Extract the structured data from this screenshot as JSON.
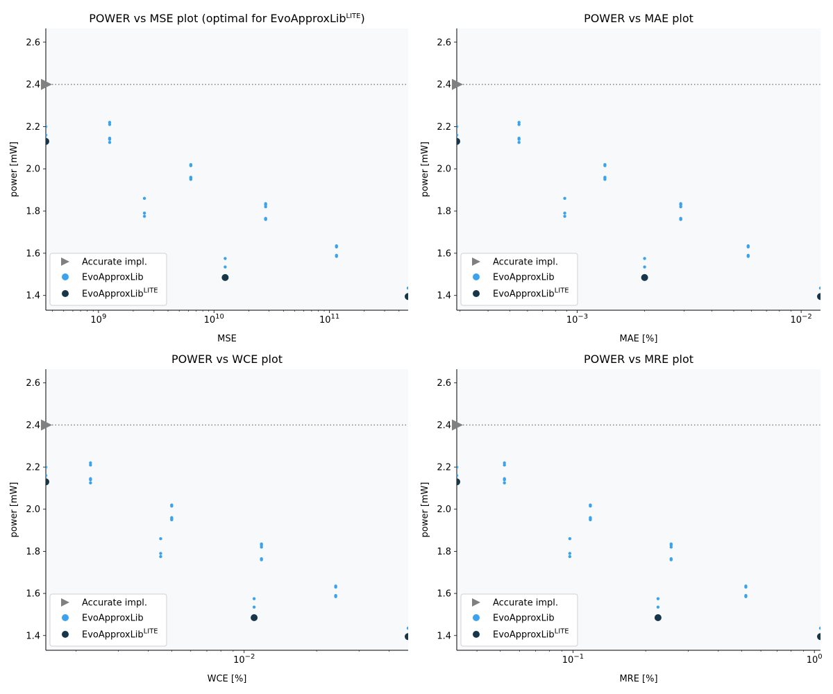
{
  "chart_data": [
    {
      "type": "scatter",
      "title": "POWER vs MSE plot (optimal for EvoApproxLib",
      "title_sup": "LITE",
      "title_tail": ")",
      "xlabel": "MSE",
      "ylabel": "power [mW]",
      "xscale": "log",
      "xlim": [
        350000000,
        480000000000
      ],
      "ylim": [
        1.33,
        2.665
      ],
      "xticks": [
        {
          "value": 1000000000,
          "base": "10",
          "exp": "9"
        },
        {
          "value": 10000000000,
          "base": "10",
          "exp": "10"
        },
        {
          "value": 100000000000,
          "base": "10",
          "exp": "11"
        }
      ],
      "yticks": [
        "1.4",
        "1.6",
        "1.8",
        "2.0",
        "2.2",
        "2.4",
        "2.6"
      ],
      "reference_y": 2.4,
      "series": [
        {
          "name": "Accurate impl.",
          "marker": "triangle",
          "color": "#808080",
          "points": [
            [
              350000000,
              2.4
            ]
          ]
        },
        {
          "name": "EvoApproxLib",
          "marker": "small-dot",
          "color": "#3ba3ec",
          "points": [
            [
              350000000,
              2.2
            ],
            [
              350000000,
              2.16
            ],
            [
              1250000000,
              2.22
            ],
            [
              1250000000,
              2.21
            ],
            [
              1250000000,
              2.145
            ],
            [
              1250000000,
              2.14
            ],
            [
              1250000000,
              2.125
            ],
            [
              2500000000,
              1.86
            ],
            [
              2500000000,
              1.79
            ],
            [
              2500000000,
              1.775
            ],
            [
              6300000000,
              2.02
            ],
            [
              6300000000,
              2.015
            ],
            [
              6300000000,
              1.96
            ],
            [
              6300000000,
              1.955
            ],
            [
              6300000000,
              1.95
            ],
            [
              12500000000,
              1.575
            ],
            [
              12500000000,
              1.535
            ],
            [
              28000000000,
              1.835
            ],
            [
              28000000000,
              1.83
            ],
            [
              28000000000,
              1.82
            ],
            [
              28000000000,
              1.765
            ],
            [
              28000000000,
              1.76
            ],
            [
              115000000000,
              1.635
            ],
            [
              115000000000,
              1.63
            ],
            [
              115000000000,
              1.59
            ],
            [
              115000000000,
              1.585
            ],
            [
              480000000000,
              1.435
            ]
          ]
        },
        {
          "name": "EvoApproxLib",
          "name_sup": "LITE",
          "marker": "large-dot",
          "color": "#17364a",
          "points": [
            [
              350000000,
              2.13
            ],
            [
              12500000000,
              1.485
            ],
            [
              480000000000,
              1.395
            ]
          ]
        }
      ]
    },
    {
      "type": "scatter",
      "title": "POWER vs MAE plot",
      "xlabel": "MAE [%]",
      "ylabel": "power [mW]",
      "xscale": "log",
      "xlim": [
        0.00029,
        0.0122
      ],
      "ylim": [
        1.33,
        2.665
      ],
      "xticks": [
        {
          "value": 0.001,
          "base": "10",
          "exp": "−3"
        },
        {
          "value": 0.01,
          "base": "10",
          "exp": "−2"
        }
      ],
      "yticks": [
        "1.4",
        "1.6",
        "1.8",
        "2.0",
        "2.2",
        "2.4",
        "2.6"
      ],
      "reference_y": 2.4,
      "series": [
        {
          "name": "Accurate impl.",
          "marker": "triangle",
          "color": "#808080",
          "points": [
            [
              0.00029,
              2.4
            ]
          ]
        },
        {
          "name": "EvoApproxLib",
          "marker": "small-dot",
          "color": "#3ba3ec",
          "points": [
            [
              0.00029,
              2.2
            ],
            [
              0.00029,
              2.16
            ],
            [
              0.00055,
              2.22
            ],
            [
              0.00055,
              2.21
            ],
            [
              0.00055,
              2.145
            ],
            [
              0.00055,
              2.14
            ],
            [
              0.00055,
              2.125
            ],
            [
              0.00088,
              1.86
            ],
            [
              0.00088,
              1.79
            ],
            [
              0.00088,
              1.775
            ],
            [
              0.00133,
              2.02
            ],
            [
              0.00133,
              2.015
            ],
            [
              0.00133,
              1.96
            ],
            [
              0.00133,
              1.955
            ],
            [
              0.00133,
              1.95
            ],
            [
              0.002,
              1.575
            ],
            [
              0.002,
              1.535
            ],
            [
              0.0029,
              1.835
            ],
            [
              0.0029,
              1.83
            ],
            [
              0.0029,
              1.82
            ],
            [
              0.0029,
              1.765
            ],
            [
              0.0029,
              1.76
            ],
            [
              0.0058,
              1.635
            ],
            [
              0.0058,
              1.63
            ],
            [
              0.0058,
              1.59
            ],
            [
              0.0058,
              1.585
            ],
            [
              0.0122,
              1.435
            ]
          ]
        },
        {
          "name": "EvoApproxLib",
          "name_sup": "LITE",
          "marker": "large-dot",
          "color": "#17364a",
          "points": [
            [
              0.00029,
              2.13
            ],
            [
              0.002,
              1.485
            ],
            [
              0.0122,
              1.395
            ]
          ]
        }
      ]
    },
    {
      "type": "scatter",
      "title": "POWER vs WCE plot",
      "xlabel": "WCE [%]",
      "ylabel": "power [mW]",
      "xscale": "log",
      "xlim": [
        0.0015,
        0.048
      ],
      "ylim": [
        1.33,
        2.665
      ],
      "xticks": [
        {
          "value": 0.01,
          "base": "10",
          "exp": "−2"
        }
      ],
      "yticks": [
        "1.4",
        "1.6",
        "1.8",
        "2.0",
        "2.2",
        "2.4",
        "2.6"
      ],
      "reference_y": 2.4,
      "series": [
        {
          "name": "Accurate impl.",
          "marker": "triangle",
          "color": "#808080",
          "points": [
            [
              0.0015,
              2.4
            ]
          ]
        },
        {
          "name": "EvoApproxLib",
          "marker": "small-dot",
          "color": "#3ba3ec",
          "points": [
            [
              0.0015,
              2.2
            ],
            [
              0.0015,
              2.16
            ],
            [
              0.0023,
              2.22
            ],
            [
              0.0023,
              2.21
            ],
            [
              0.0023,
              2.145
            ],
            [
              0.0023,
              2.14
            ],
            [
              0.0023,
              2.125
            ],
            [
              0.0045,
              1.86
            ],
            [
              0.0045,
              1.79
            ],
            [
              0.0045,
              1.775
            ],
            [
              0.005,
              2.02
            ],
            [
              0.005,
              2.015
            ],
            [
              0.005,
              1.96
            ],
            [
              0.005,
              1.955
            ],
            [
              0.005,
              1.95
            ],
            [
              0.011,
              1.575
            ],
            [
              0.011,
              1.535
            ],
            [
              0.0118,
              1.835
            ],
            [
              0.0118,
              1.83
            ],
            [
              0.0118,
              1.82
            ],
            [
              0.0118,
              1.765
            ],
            [
              0.0118,
              1.76
            ],
            [
              0.024,
              1.635
            ],
            [
              0.024,
              1.63
            ],
            [
              0.024,
              1.59
            ],
            [
              0.024,
              1.585
            ],
            [
              0.048,
              1.435
            ]
          ]
        },
        {
          "name": "EvoApproxLib",
          "name_sup": "LITE",
          "marker": "large-dot",
          "color": "#17364a",
          "points": [
            [
              0.0015,
              2.13
            ],
            [
              0.011,
              1.485
            ],
            [
              0.048,
              1.395
            ]
          ]
        }
      ]
    },
    {
      "type": "scatter",
      "title": "POWER vs MRE plot",
      "xlabel": "MRE [%]",
      "ylabel": "power [mW]",
      "xscale": "log",
      "xlim": [
        0.033,
        1.06
      ],
      "ylim": [
        1.33,
        2.665
      ],
      "xticks": [
        {
          "value": 0.1,
          "base": "10",
          "exp": "−1"
        },
        {
          "value": 1,
          "base": "10",
          "exp": "0"
        }
      ],
      "yticks": [
        "1.4",
        "1.6",
        "1.8",
        "2.0",
        "2.2",
        "2.4",
        "2.6"
      ],
      "reference_y": 2.4,
      "series": [
        {
          "name": "Accurate impl.",
          "marker": "triangle",
          "color": "#808080",
          "points": [
            [
              0.033,
              2.4
            ]
          ]
        },
        {
          "name": "EvoApproxLib",
          "marker": "small-dot",
          "color": "#3ba3ec",
          "points": [
            [
              0.033,
              2.2
            ],
            [
              0.033,
              2.16
            ],
            [
              0.052,
              2.22
            ],
            [
              0.052,
              2.21
            ],
            [
              0.052,
              2.145
            ],
            [
              0.052,
              2.14
            ],
            [
              0.052,
              2.125
            ],
            [
              0.097,
              1.86
            ],
            [
              0.097,
              1.79
            ],
            [
              0.097,
              1.775
            ],
            [
              0.118,
              2.02
            ],
            [
              0.118,
              2.015
            ],
            [
              0.118,
              1.96
            ],
            [
              0.118,
              1.955
            ],
            [
              0.118,
              1.95
            ],
            [
              0.225,
              1.575
            ],
            [
              0.225,
              1.535
            ],
            [
              0.255,
              1.835
            ],
            [
              0.255,
              1.83
            ],
            [
              0.255,
              1.82
            ],
            [
              0.255,
              1.765
            ],
            [
              0.255,
              1.76
            ],
            [
              0.52,
              1.635
            ],
            [
              0.52,
              1.63
            ],
            [
              0.52,
              1.59
            ],
            [
              0.52,
              1.585
            ],
            [
              1.06,
              1.435
            ]
          ]
        },
        {
          "name": "EvoApproxLib",
          "name_sup": "LITE",
          "marker": "large-dot",
          "color": "#17364a",
          "points": [
            [
              0.033,
              2.13
            ],
            [
              0.225,
              1.485
            ],
            [
              1.06,
              1.395
            ]
          ]
        }
      ]
    }
  ]
}
